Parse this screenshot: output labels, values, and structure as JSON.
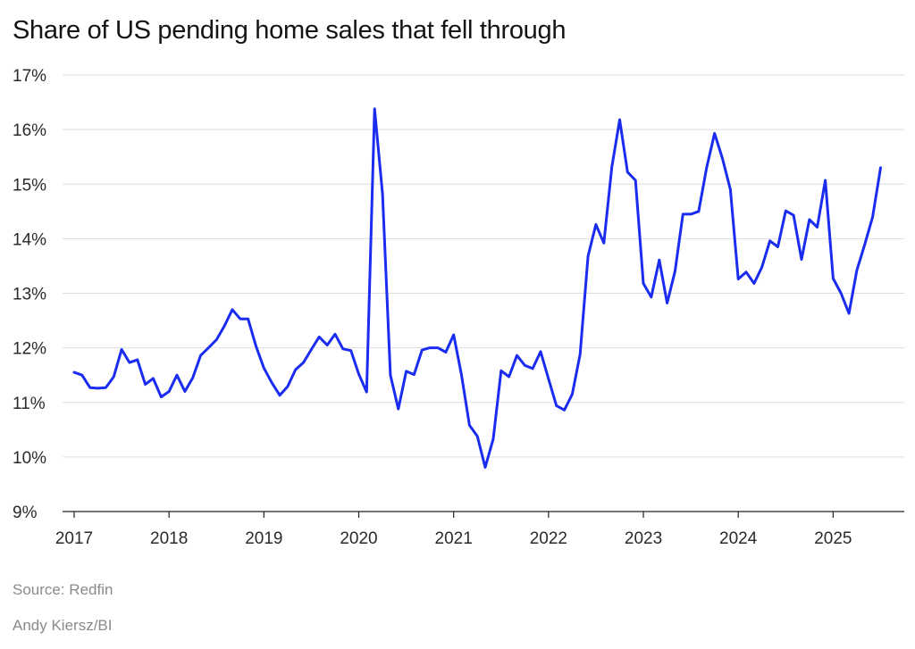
{
  "chart_data": {
    "type": "line",
    "title": "Share of US pending home sales that fell through",
    "xlabel": "",
    "ylabel": "",
    "ylim": [
      9,
      17
    ],
    "yticks": [
      9,
      10,
      11,
      12,
      13,
      14,
      15,
      16,
      17
    ],
    "ytick_labels": [
      "9%",
      "10%",
      "11%",
      "12%",
      "13%",
      "14%",
      "15%",
      "16%",
      "17%"
    ],
    "xlim": [
      2017.0,
      2025.75
    ],
    "xticks": [
      2017,
      2018,
      2019,
      2020,
      2021,
      2022,
      2023,
      2024,
      2025
    ],
    "xtick_labels": [
      "2017",
      "2018",
      "2019",
      "2020",
      "2021",
      "2022",
      "2023",
      "2024",
      "2025"
    ],
    "grid": true,
    "line_color": "#1a2cf0",
    "series": [
      {
        "name": "Share of pending sales that fell through",
        "x": [
          2017.0,
          2017.083,
          2017.167,
          2017.25,
          2017.333,
          2017.417,
          2017.5,
          2017.583,
          2017.667,
          2017.75,
          2017.833,
          2017.917,
          2018.0,
          2018.083,
          2018.167,
          2018.25,
          2018.333,
          2018.417,
          2018.5,
          2018.583,
          2018.667,
          2018.75,
          2018.833,
          2018.917,
          2019.0,
          2019.083,
          2019.167,
          2019.25,
          2019.333,
          2019.417,
          2019.5,
          2019.583,
          2019.667,
          2019.75,
          2019.833,
          2019.917,
          2020.0,
          2020.083,
          2020.167,
          2020.25,
          2020.333,
          2020.417,
          2020.5,
          2020.583,
          2020.667,
          2020.75,
          2020.833,
          2020.917,
          2021.0,
          2021.083,
          2021.167,
          2021.25,
          2021.333,
          2021.417,
          2021.5,
          2021.583,
          2021.667,
          2021.75,
          2021.833,
          2021.917,
          2022.0,
          2022.083,
          2022.167,
          2022.25,
          2022.333,
          2022.417,
          2022.5,
          2022.583,
          2022.667,
          2022.75,
          2022.833,
          2022.917,
          2023.0,
          2023.083,
          2023.167,
          2023.25,
          2023.333,
          2023.417,
          2023.5,
          2023.583,
          2023.667,
          2023.75,
          2023.833,
          2023.917,
          2024.0,
          2024.083,
          2024.167,
          2024.25,
          2024.333,
          2024.417,
          2024.5,
          2024.583,
          2024.667,
          2024.75,
          2024.833,
          2024.917,
          2025.0,
          2025.083,
          2025.167,
          2025.25,
          2025.333,
          2025.417,
          2025.5
        ],
        "values": [
          11.55,
          11.5,
          11.27,
          11.26,
          11.27,
          11.47,
          11.97,
          11.73,
          11.78,
          11.33,
          11.44,
          11.1,
          11.2,
          11.5,
          11.2,
          11.45,
          11.86,
          12.0,
          12.15,
          12.4,
          12.7,
          12.53,
          12.53,
          12.03,
          11.63,
          11.36,
          11.13,
          11.29,
          11.6,
          11.73,
          11.97,
          12.2,
          12.05,
          12.25,
          11.98,
          11.95,
          11.52,
          11.19,
          16.38,
          14.82,
          11.5,
          10.88,
          11.57,
          11.51,
          11.96,
          12.0,
          12.0,
          11.92,
          12.24,
          11.5,
          10.58,
          10.38,
          9.81,
          10.33,
          11.58,
          11.47,
          11.86,
          11.68,
          11.62,
          11.93,
          11.43,
          10.94,
          10.86,
          11.15,
          11.88,
          13.68,
          14.26,
          13.92,
          15.31,
          16.18,
          15.22,
          15.07,
          13.18,
          12.93,
          13.61,
          12.82,
          13.4,
          14.45,
          14.45,
          14.5,
          15.3,
          15.93,
          15.47,
          14.9,
          13.26,
          13.39,
          13.18,
          13.48,
          13.96,
          13.85,
          14.51,
          14.43,
          13.62,
          14.35,
          14.21,
          15.07,
          13.27,
          13.0,
          12.63,
          13.42,
          13.89,
          14.4,
          15.3
        ]
      }
    ]
  },
  "footer": {
    "source": "Source: Redfin",
    "credit": "Andy Kiersz/BI"
  }
}
